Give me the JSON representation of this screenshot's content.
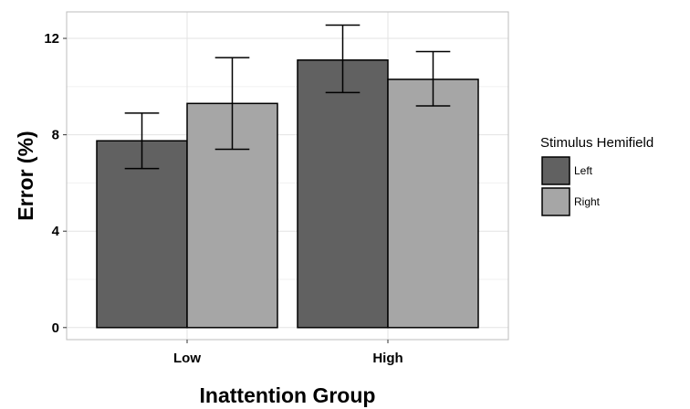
{
  "chart_data": {
    "type": "bar",
    "title": "",
    "xlabel": "Inattention Group",
    "ylabel": "Error (%)",
    "categories": [
      "Low",
      "High"
    ],
    "series": [
      {
        "name": "Left",
        "color": "#616161",
        "values": [
          7.75,
          11.1
        ],
        "error_low": [
          6.6,
          9.75
        ],
        "error_high": [
          8.9,
          12.55
        ]
      },
      {
        "name": "Right",
        "color": "#a6a6a6",
        "values": [
          9.3,
          10.3
        ],
        "error_low": [
          7.4,
          9.2
        ],
        "error_high": [
          11.2,
          11.45
        ]
      }
    ],
    "yticks": [
      0,
      4,
      8,
      12
    ],
    "ytick_labels": [
      "0",
      "4",
      "8",
      "12"
    ],
    "ylim": [
      -0.5,
      13.1
    ],
    "grid": true,
    "legend": {
      "title": "Stimulus Hemifield",
      "placement": "right"
    }
  }
}
